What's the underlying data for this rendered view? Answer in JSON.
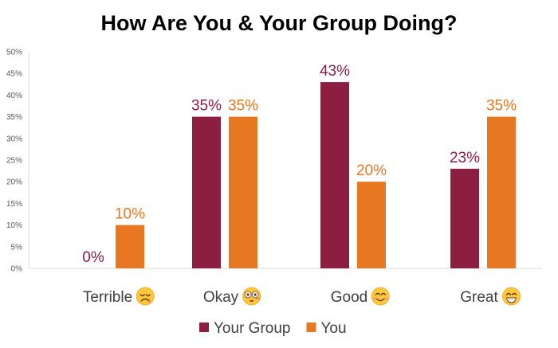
{
  "chart_data": {
    "type": "bar",
    "title": "How Are You & Your Group Doing?",
    "categories": [
      "Terrible",
      "Okay",
      "Good",
      "Great"
    ],
    "category_icons": [
      "frowning-face-icon",
      "dizzy-face-icon",
      "smiling-face-icon",
      "grinning-face-icon"
    ],
    "series": [
      {
        "name": "Your Group",
        "color": "#8B1E41",
        "values": [
          0,
          35,
          43,
          23
        ],
        "labels": [
          "0%",
          "35%",
          "43%",
          "23%"
        ]
      },
      {
        "name": "You",
        "color": "#E87722",
        "values": [
          10,
          35,
          20,
          35
        ],
        "labels": [
          "10%",
          "35%",
          "20%",
          "35%"
        ]
      }
    ],
    "y_ticks": [
      "0%",
      "5%",
      "10%",
      "15%",
      "20%",
      "25%",
      "30%",
      "35%",
      "40%",
      "45%",
      "50%"
    ],
    "ylim": [
      0,
      50
    ],
    "grid": false,
    "legend_position": "bottom"
  }
}
